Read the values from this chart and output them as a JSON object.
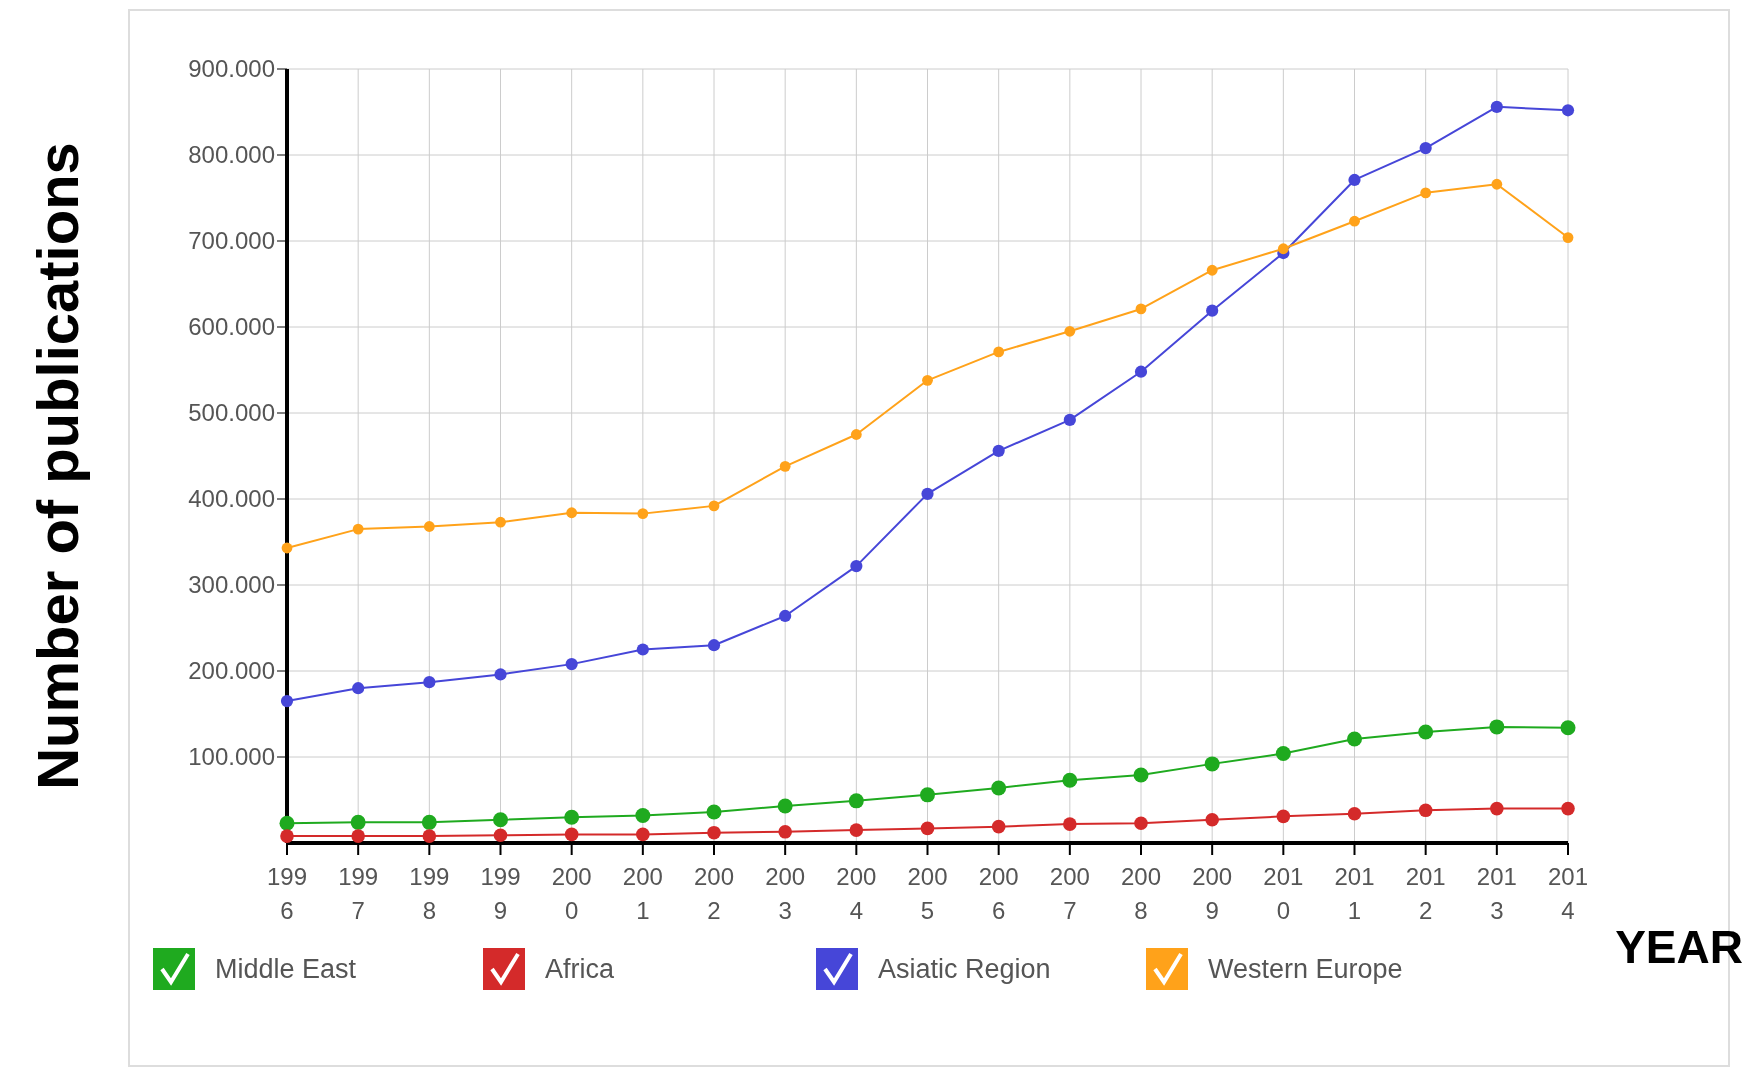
{
  "chart_data": {
    "type": "line",
    "xlabel": "YEAR",
    "ylabel": "Number of publications",
    "categories": [
      "1996",
      "1997",
      "1998",
      "1999",
      "2000",
      "2001",
      "2002",
      "2003",
      "2004",
      "2005",
      "2006",
      "2007",
      "2008",
      "2009",
      "2010",
      "2011",
      "2012",
      "2013",
      "2014"
    ],
    "series": [
      {
        "name": "Middle East",
        "color": "#1faa1f",
        "values": [
          23000,
          24000,
          24000,
          27000,
          30000,
          32000,
          36000,
          43000,
          49000,
          56000,
          64000,
          73000,
          79000,
          92000,
          104000,
          121000,
          129000,
          135000,
          134000
        ]
      },
      {
        "name": "Africa",
        "color": "#d42a2a",
        "values": [
          8000,
          8000,
          8000,
          9000,
          10000,
          10000,
          12000,
          13000,
          15000,
          17000,
          19000,
          22000,
          23000,
          27000,
          31000,
          34000,
          38000,
          40000,
          40000
        ]
      },
      {
        "name": "Asiatic Region",
        "color": "#4646d8",
        "values": [
          165000,
          180000,
          187000,
          196000,
          208000,
          225000,
          230000,
          264000,
          322000,
          406000,
          456000,
          492000,
          548000,
          619000,
          686000,
          771000,
          808000,
          856000,
          852000
        ]
      },
      {
        "name": "Western Europe",
        "color": "#ffa21a",
        "values": [
          343000,
          365000,
          368000,
          373000,
          384000,
          383000,
          392000,
          438000,
          475000,
          538000,
          571000,
          595000,
          621000,
          666000,
          691000,
          723000,
          756000,
          766000,
          704000
        ]
      }
    ],
    "ylim": [
      0,
      900000
    ],
    "yticks": [
      {
        "value": 100000,
        "label": "100.000"
      },
      {
        "value": 200000,
        "label": "200.000"
      },
      {
        "value": 300000,
        "label": "300.000"
      },
      {
        "value": 400000,
        "label": "400.000"
      },
      {
        "value": 500000,
        "label": "500.000"
      },
      {
        "value": 600000,
        "label": "600.000"
      },
      {
        "value": 700000,
        "label": "700.000"
      },
      {
        "value": 800000,
        "label": "800.000"
      },
      {
        "value": 900000,
        "label": "900.000"
      }
    ],
    "grid": true,
    "legend": "bottom",
    "marker": "circle",
    "line_style": "solid"
  }
}
